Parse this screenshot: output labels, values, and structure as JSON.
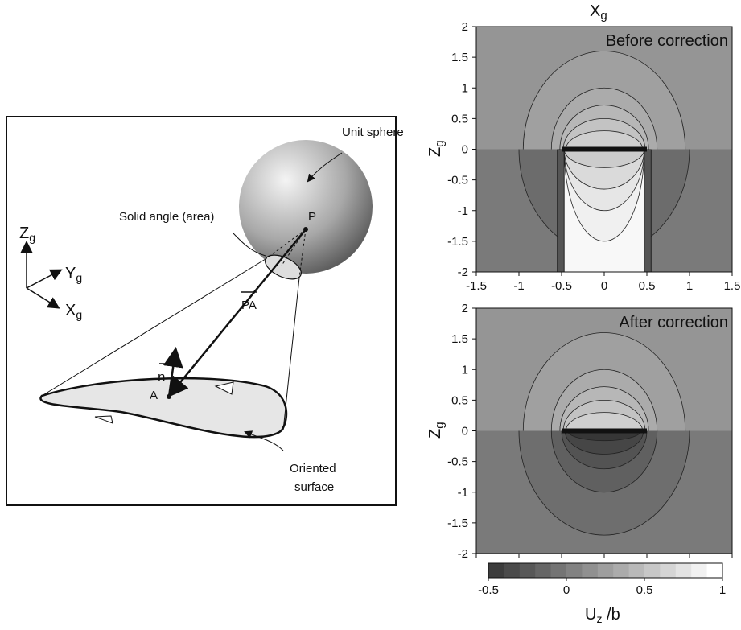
{
  "diagram": {
    "unit_sphere": "Unit sphere",
    "solid_angle": "Solid angle (area)",
    "point_p": "P",
    "point_a": "A",
    "normal": "n",
    "vector_pa": "PA",
    "oriented_surface": [
      "Oriented",
      "surface"
    ],
    "axes": {
      "z": "Z",
      "y": "Y",
      "x": "X",
      "subscript": "g"
    }
  },
  "plots": {
    "x_label": {
      "main": "X",
      "subscript": "g"
    },
    "y_label": {
      "main": "Z",
      "subscript": "g"
    },
    "panels": [
      {
        "title": "Before correction"
      },
      {
        "title": "After correction"
      }
    ],
    "xlim": [
      -1.5,
      1.5
    ],
    "ylim": [
      -2,
      2
    ],
    "xticks": [
      -1.5,
      -1,
      -0.5,
      0,
      0.5,
      1,
      1.5
    ],
    "yticks": [
      2,
      1.5,
      1,
      0.5,
      0,
      -0.5,
      -1,
      -1.5,
      -2
    ],
    "colorbar": {
      "lim": [
        -0.5,
        1
      ],
      "ticks": [
        -0.5,
        0,
        0.5,
        1
      ],
      "label": {
        "main": "U",
        "subscript": "z",
        "suffix": " /b"
      }
    }
  }
}
